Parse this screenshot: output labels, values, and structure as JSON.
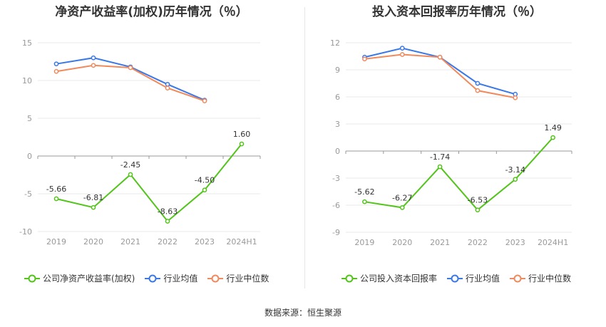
{
  "chart_data": [
    {
      "type": "line",
      "title": "净资产收益率(加权)历年情况（％）",
      "categories": [
        "2019",
        "2020",
        "2021",
        "2022",
        "2023",
        "2024H1"
      ],
      "ylim": [
        -10,
        15
      ],
      "yticks": [
        -10,
        -5,
        0,
        5,
        10,
        15
      ],
      "series": [
        {
          "name": "公司净资产收益率(加权)",
          "color": "#52c41a",
          "values": [
            -5.66,
            -6.81,
            -2.45,
            -8.63,
            -4.5,
            1.6
          ],
          "labels": [
            "-5.66",
            "-6.81",
            "-2.45",
            "-8.63",
            "-4.50",
            "1.60"
          ]
        },
        {
          "name": "行业均值",
          "color": "#3b78e7",
          "values": [
            12.2,
            13.0,
            11.8,
            9.5,
            7.4,
            null
          ]
        },
        {
          "name": "行业中位数",
          "color": "#f08a5d",
          "values": [
            11.2,
            12.0,
            11.7,
            9.0,
            7.3,
            null
          ]
        }
      ],
      "grid": true
    },
    {
      "type": "line",
      "title": "投入资本回报率历年情况（％）",
      "categories": [
        "2019",
        "2020",
        "2021",
        "2022",
        "2023",
        "2024H1"
      ],
      "ylim": [
        -9,
        12
      ],
      "yticks": [
        -9,
        -6,
        -3,
        0,
        3,
        6,
        9,
        12
      ],
      "series": [
        {
          "name": "公司投入资本回报率",
          "color": "#52c41a",
          "values": [
            -5.62,
            -6.27,
            -1.74,
            -6.53,
            -3.14,
            1.49
          ],
          "labels": [
            "-5.62",
            "-6.27",
            "-1.74",
            "-6.53",
            "-3.14",
            "1.49"
          ]
        },
        {
          "name": "行业均值",
          "color": "#3b78e7",
          "values": [
            10.4,
            11.4,
            10.4,
            7.5,
            6.3,
            null
          ]
        },
        {
          "name": "行业中位数",
          "color": "#f08a5d",
          "values": [
            10.2,
            10.7,
            10.4,
            6.7,
            5.9,
            null
          ]
        }
      ],
      "grid": true
    }
  ],
  "footer": "数据来源：恒生聚源"
}
